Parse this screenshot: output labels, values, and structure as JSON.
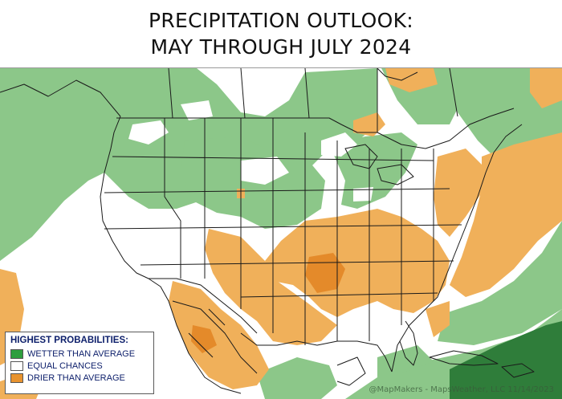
{
  "title": {
    "line1": "PRECIPITATION OUTLOOK:",
    "line2": "MAY THROUGH JULY 2024"
  },
  "legend": {
    "title": "HIGHEST PROBABILITIES:",
    "items": [
      {
        "label": "WETTER THAN AVERAGE",
        "color": "#2e9e3e"
      },
      {
        "label": "EQUAL CHANCES",
        "color": "#ffffff"
      },
      {
        "label": "DRIER THAN AVERAGE",
        "color": "#e8932f"
      }
    ]
  },
  "credit": "@MapMakers - MapsWeather, LLC 11/14/2023",
  "colors": {
    "wetter_light": "#7fbf7b",
    "wetter_dark": "#2f7d3a",
    "drier": "#f0b05a",
    "drier_dark": "#e48a2a",
    "boundary": "#1a1a1a"
  }
}
